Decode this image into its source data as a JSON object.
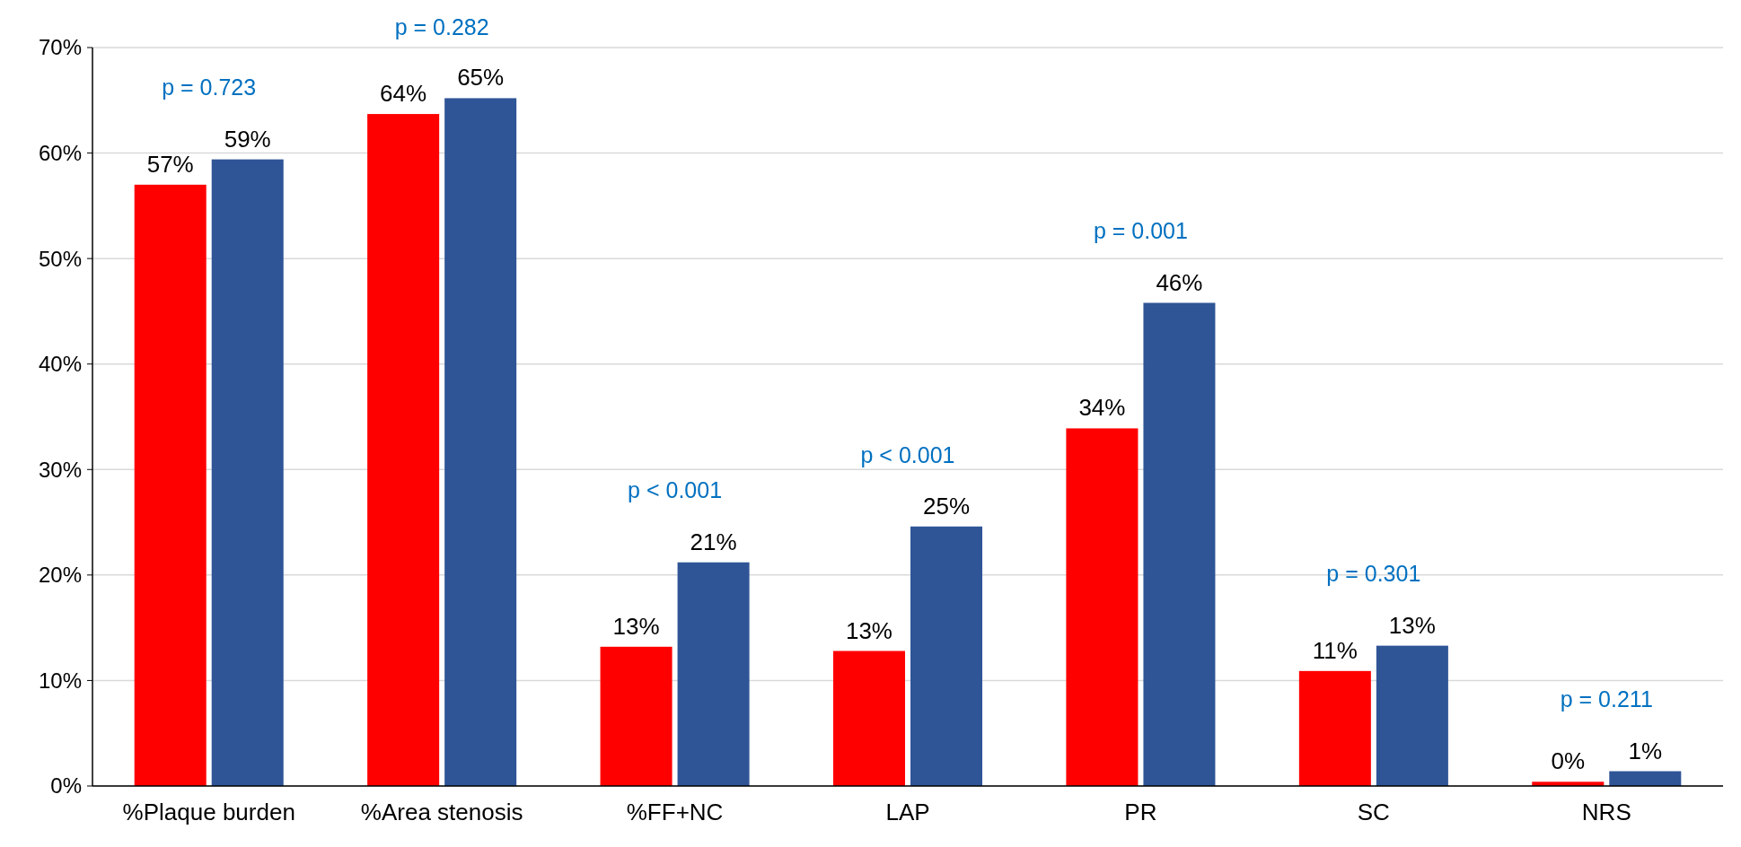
{
  "chart_data": {
    "type": "bar",
    "categories": [
      "%Plaque burden",
      "%Area stenosis",
      "%FF+NC",
      "LAP",
      "PR",
      "SC",
      "NRS"
    ],
    "series": [
      {
        "color": "#ff0000",
        "values": [
          57.0,
          63.7,
          13.2,
          12.8,
          33.9,
          10.9,
          0.4
        ],
        "value_labels": [
          "57%",
          "64%",
          "13%",
          "13%",
          "34%",
          "11%",
          "0%"
        ]
      },
      {
        "color": "#2f5597",
        "values": [
          59.4,
          65.2,
          21.2,
          24.6,
          45.8,
          13.3,
          1.4
        ],
        "value_labels": [
          "59%",
          "65%",
          "21%",
          "25%",
          "46%",
          "13%",
          "1%"
        ]
      }
    ],
    "ylim": [
      0,
      70
    ],
    "yticks": [
      {
        "value": 0,
        "label": "0%"
      },
      {
        "value": 10,
        "label": "10%"
      },
      {
        "value": 20,
        "label": "20%"
      },
      {
        "value": 30,
        "label": "30%"
      },
      {
        "value": 40,
        "label": "40%"
      },
      {
        "value": 50,
        "label": "50%"
      },
      {
        "value": 60,
        "label": "60%"
      },
      {
        "value": 70,
        "label": "70%"
      }
    ],
    "grid": "y",
    "annotations": [
      "p = 0.723",
      "p = 0.282",
      "p < 0.001",
      "p < 0.001",
      "p = 0.001",
      "p = 0.301",
      "p = 0.211"
    ]
  }
}
